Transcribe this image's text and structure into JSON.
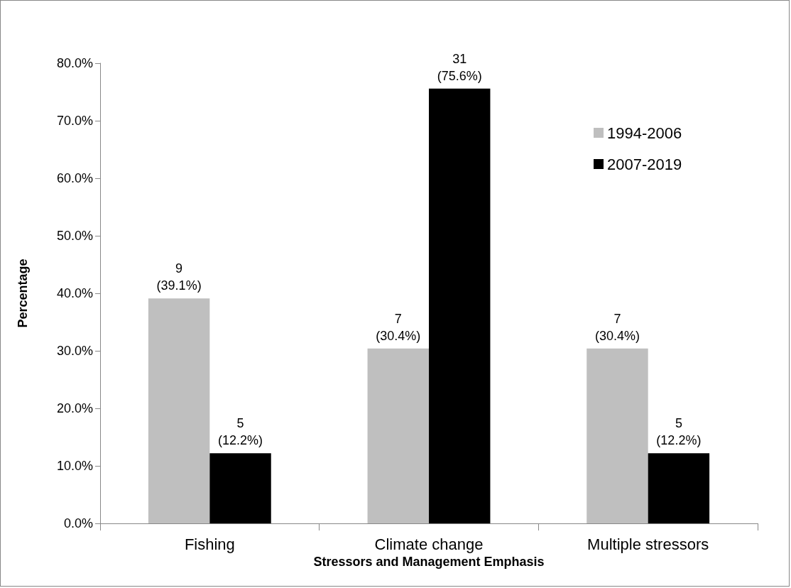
{
  "chart_data": {
    "type": "bar",
    "xlabel": "Stressors and Management Emphasis",
    "ylabel": "Percentage",
    "categories": [
      "Fishing",
      "Climate change",
      "Multiple stressors"
    ],
    "series": [
      {
        "name": "1994-2006",
        "color": "#bfbfbf",
        "values": [
          39.1,
          30.4,
          30.4
        ],
        "value_labels": [
          "9\n(39.1%)",
          "7\n(30.4%)",
          "7\n(30.4%)"
        ]
      },
      {
        "name": "2007-2019",
        "color": "#000000",
        "values": [
          12.2,
          75.6,
          12.2
        ],
        "value_labels": [
          "5\n(12.2%)",
          "31\n(75.6%)",
          "5\n(12.2%)"
        ]
      }
    ],
    "ylim": [
      0,
      80
    ],
    "yticks": [
      {
        "value": 0,
        "label": "0.0%"
      },
      {
        "value": 10,
        "label": "10.0%"
      },
      {
        "value": 20,
        "label": "20.0%"
      },
      {
        "value": 30,
        "label": "30.0%"
      },
      {
        "value": 40,
        "label": "40.0%"
      },
      {
        "value": 50,
        "label": "50.0%"
      },
      {
        "value": 60,
        "label": "60.0%"
      },
      {
        "value": 70,
        "label": "70.0%"
      },
      {
        "value": 80,
        "label": "80.0%"
      }
    ],
    "grid": false,
    "legend": "right"
  }
}
